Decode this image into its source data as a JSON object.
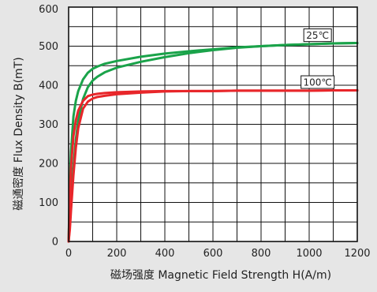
{
  "chart_data": {
    "type": "line",
    "xlabel": "磁场强度  Magnetic Field Strength H(A/m)",
    "ylabel": "磁通密度   Flux Density B(mT)",
    "xlim": [
      0,
      1200
    ],
    "ylim": [
      0,
      600
    ],
    "x_ticks": [
      "0",
      "200",
      "400",
      "600",
      "800",
      "1000",
      "1200"
    ],
    "y_ticks": [
      "0",
      "100",
      "200",
      "300",
      "400",
      "500",
      "600"
    ],
    "x_tick_values": [
      0,
      200,
      400,
      600,
      800,
      1000,
      1200
    ],
    "y_tick_values": [
      0,
      100,
      200,
      300,
      400,
      500,
      600
    ],
    "grid": true,
    "x_grid_step": 100,
    "y_grid_step": 50,
    "series": [
      {
        "name": "25℃",
        "color": "#1aa34a",
        "curve": "upper",
        "x": [
          0,
          5,
          10,
          20,
          30,
          40,
          60,
          80,
          100,
          120,
          150,
          200,
          300,
          400,
          500,
          600,
          700,
          800,
          900,
          1000,
          1100,
          1200
        ],
        "y": [
          0,
          140,
          230,
          320,
          360,
          385,
          415,
          432,
          442,
          448,
          455,
          462,
          473,
          481,
          487,
          492,
          497,
          500,
          503,
          505,
          507,
          508
        ]
      },
      {
        "name": "25℃",
        "color": "#1aa34a",
        "curve": "lower",
        "x": [
          0,
          5,
          10,
          20,
          30,
          40,
          60,
          80,
          100,
          120,
          150,
          200,
          300,
          400,
          500,
          600,
          700,
          800,
          900,
          1000,
          1100,
          1200
        ],
        "y": [
          0,
          40,
          100,
          190,
          260,
          310,
          365,
          395,
          412,
          422,
          433,
          445,
          460,
          472,
          482,
          490,
          496,
          500,
          503,
          505,
          507,
          508
        ]
      },
      {
        "name": "100℃",
        "color": "#e8262a",
        "curve": "upper",
        "x": [
          0,
          5,
          10,
          20,
          30,
          40,
          60,
          80,
          100,
          120,
          150,
          200,
          300,
          400,
          500,
          600,
          700,
          800,
          900,
          1000,
          1100,
          1200
        ],
        "y": [
          0,
          110,
          190,
          270,
          310,
          335,
          360,
          372,
          376,
          378,
          380,
          382,
          384,
          385,
          385,
          385,
          386,
          386,
          386,
          386,
          387,
          387
        ]
      },
      {
        "name": "100℃",
        "color": "#e8262a",
        "curve": "lower",
        "x": [
          0,
          5,
          10,
          20,
          30,
          40,
          60,
          80,
          100,
          120,
          150,
          200,
          300,
          400,
          500,
          600,
          700,
          800,
          900,
          1000,
          1100,
          1200
        ],
        "y": [
          0,
          30,
          80,
          170,
          240,
          290,
          340,
          358,
          366,
          370,
          373,
          377,
          381,
          384,
          385,
          385,
          386,
          386,
          386,
          386,
          387,
          387
        ]
      }
    ],
    "legend": [
      {
        "label": "25℃",
        "color": "#1aa34a",
        "anchor": [
          1035,
          528
        ]
      },
      {
        "label": "100℃",
        "color": "#e8262a",
        "anchor": [
          1035,
          408
        ]
      }
    ]
  }
}
